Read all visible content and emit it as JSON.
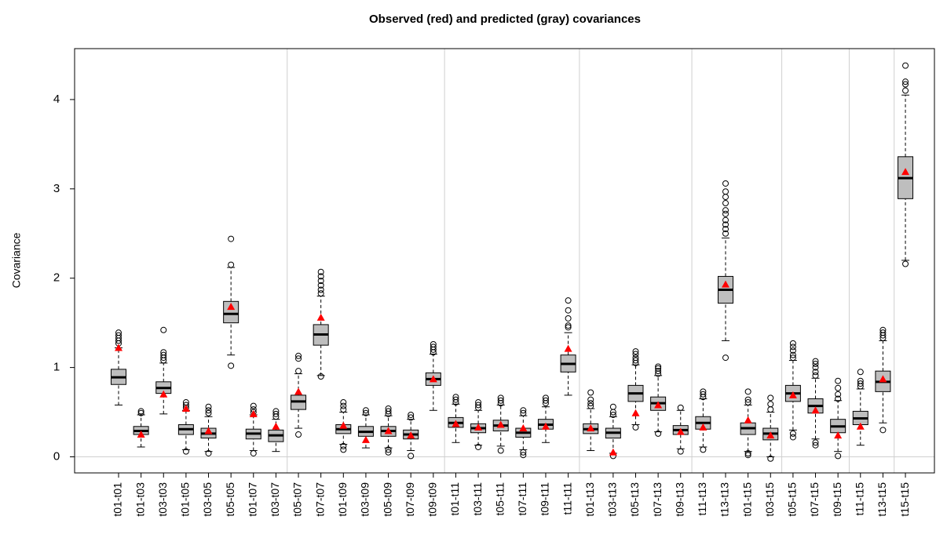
{
  "chart_data": {
    "type": "boxplot",
    "title": "Observed (red) and predicted (gray) covariances",
    "y_label": "Covariance",
    "ylim": [
      -0.18,
      4.57
    ],
    "yticks": [
      0,
      1,
      2,
      3,
      4
    ],
    "box_color": "#bebebe",
    "observed_color": "#ff0000",
    "categories": [
      "t01-t01",
      "t01-t03",
      "t03-t03",
      "t01-t05",
      "t03-t05",
      "t05-t05",
      "t01-t07",
      "t03-t07",
      "t05-t07",
      "t07-t07",
      "t01-t09",
      "t03-t09",
      "t05-t09",
      "t07-t09",
      "t09-t09",
      "t01-t11",
      "t03-t11",
      "t05-t11",
      "t07-t11",
      "t09-t11",
      "t11-t11",
      "t01-t13",
      "t03-t13",
      "t05-t13",
      "t07-t13",
      "t09-t13",
      "t11-t13",
      "t13-t13",
      "t01-t15",
      "t03-t15",
      "t05-t15",
      "t07-t15",
      "t09-t15",
      "t11-t15",
      "t13-t15",
      "t15-t15"
    ],
    "boxes": [
      {
        "whisker_low": 0.58,
        "q1": 0.81,
        "median": 0.89,
        "q3": 0.98,
        "whisker_high": 1.22,
        "outliers": [
          1.27,
          1.3,
          1.33,
          1.36,
          1.39
        ]
      },
      {
        "whisker_low": 0.11,
        "q1": 0.25,
        "median": 0.29,
        "q3": 0.34,
        "whisker_high": 0.47,
        "outliers": [
          0.49,
          0.51
        ]
      },
      {
        "whisker_low": 0.48,
        "q1": 0.71,
        "median": 0.77,
        "q3": 0.84,
        "whisker_high": 1.05,
        "outliers": [
          1.08,
          1.11,
          1.14,
          1.17,
          1.42
        ]
      },
      {
        "whisker_low": 0.08,
        "q1": 0.25,
        "median": 0.31,
        "q3": 0.36,
        "whisker_high": 0.52,
        "outliers": [
          0.06,
          0.55,
          0.58,
          0.61
        ]
      },
      {
        "whisker_low": 0.06,
        "q1": 0.21,
        "median": 0.26,
        "q3": 0.32,
        "whisker_high": 0.45,
        "outliers": [
          0.04,
          0.49,
          0.52,
          0.56
        ]
      },
      {
        "whisker_low": 1.14,
        "q1": 1.5,
        "median": 1.6,
        "q3": 1.74,
        "whisker_high": 2.12,
        "outliers": [
          1.02,
          2.15,
          2.44
        ]
      },
      {
        "whisker_low": 0.07,
        "q1": 0.2,
        "median": 0.26,
        "q3": 0.31,
        "whisker_high": 0.47,
        "outliers": [
          0.04,
          0.5,
          0.53,
          0.57
        ]
      },
      {
        "whisker_low": 0.06,
        "q1": 0.17,
        "median": 0.24,
        "q3": 0.3,
        "whisker_high": 0.42,
        "outliers": [
          0.45,
          0.48,
          0.51
        ]
      },
      {
        "whisker_low": 0.32,
        "q1": 0.53,
        "median": 0.62,
        "q3": 0.69,
        "whisker_high": 0.93,
        "outliers": [
          0.25,
          0.96,
          1.1,
          1.13
        ]
      },
      {
        "whisker_low": 0.91,
        "q1": 1.25,
        "median": 1.37,
        "q3": 1.48,
        "whisker_high": 1.8,
        "outliers": [
          0.9,
          1.83,
          1.87,
          1.92,
          1.97,
          2.02,
          2.07
        ]
      },
      {
        "whisker_low": 0.14,
        "q1": 0.26,
        "median": 0.31,
        "q3": 0.36,
        "whisker_high": 0.5,
        "outliers": [
          0.08,
          0.12,
          0.53,
          0.57,
          0.61
        ]
      },
      {
        "whisker_low": 0.1,
        "q1": 0.23,
        "median": 0.28,
        "q3": 0.34,
        "whisker_high": 0.47,
        "outliers": [
          0.49,
          0.52
        ]
      },
      {
        "whisker_low": 0.1,
        "q1": 0.23,
        "median": 0.29,
        "q3": 0.34,
        "whisker_high": 0.46,
        "outliers": [
          0.05,
          0.08,
          0.48,
          0.51,
          0.54
        ]
      },
      {
        "whisker_low": 0.07,
        "q1": 0.2,
        "median": 0.25,
        "q3": 0.3,
        "whisker_high": 0.42,
        "outliers": [
          0.01,
          0.44,
          0.47
        ]
      },
      {
        "whisker_low": 0.52,
        "q1": 0.8,
        "median": 0.87,
        "q3": 0.94,
        "whisker_high": 1.15,
        "outliers": [
          1.17,
          1.2,
          1.23,
          1.26
        ]
      },
      {
        "whisker_low": 0.16,
        "q1": 0.33,
        "median": 0.38,
        "q3": 0.44,
        "whisker_high": 0.59,
        "outliers": [
          0.61,
          0.64,
          0.67
        ]
      },
      {
        "whisker_low": 0.13,
        "q1": 0.27,
        "median": 0.32,
        "q3": 0.37,
        "whisker_high": 0.52,
        "outliers": [
          0.11,
          0.55,
          0.58,
          0.61
        ]
      },
      {
        "whisker_low": 0.12,
        "q1": 0.29,
        "median": 0.35,
        "q3": 0.41,
        "whisker_high": 0.58,
        "outliers": [
          0.07,
          0.6,
          0.63,
          0.66
        ]
      },
      {
        "whisker_low": 0.08,
        "q1": 0.22,
        "median": 0.27,
        "q3": 0.32,
        "whisker_high": 0.46,
        "outliers": [
          0.02,
          0.05,
          0.49,
          0.52
        ]
      },
      {
        "whisker_low": 0.16,
        "q1": 0.31,
        "median": 0.36,
        "q3": 0.42,
        "whisker_high": 0.56,
        "outliers": [
          0.6,
          0.63,
          0.66
        ]
      },
      {
        "whisker_low": 0.69,
        "q1": 0.95,
        "median": 1.04,
        "q3": 1.14,
        "whisker_high": 1.39,
        "outliers": [
          1.45,
          1.47,
          1.55,
          1.64,
          1.75
        ]
      },
      {
        "whisker_low": 0.07,
        "q1": 0.26,
        "median": 0.31,
        "q3": 0.37,
        "whisker_high": 0.54,
        "outliers": [
          0.57,
          0.6,
          0.64,
          0.72
        ]
      },
      {
        "whisker_low": 0.04,
        "q1": 0.21,
        "median": 0.27,
        "q3": 0.32,
        "whisker_high": 0.45,
        "outliers": [
          0.01,
          0.47,
          0.5,
          0.56
        ]
      },
      {
        "whisker_low": 0.36,
        "q1": 0.62,
        "median": 0.71,
        "q3": 0.8,
        "whisker_high": 1.03,
        "outliers": [
          0.33,
          1.05,
          1.08,
          1.11,
          1.15,
          1.18
        ]
      },
      {
        "whisker_low": 0.28,
        "q1": 0.52,
        "median": 0.6,
        "q3": 0.67,
        "whisker_high": 0.91,
        "outliers": [
          0.26,
          0.93,
          0.96,
          0.99,
          1.01
        ]
      },
      {
        "whisker_low": 0.09,
        "q1": 0.25,
        "median": 0.3,
        "q3": 0.35,
        "whisker_high": 0.52,
        "outliers": [
          0.06,
          0.55
        ]
      },
      {
        "whisker_low": 0.11,
        "q1": 0.31,
        "median": 0.38,
        "q3": 0.45,
        "whisker_high": 0.65,
        "outliers": [
          0.08,
          0.67,
          0.7,
          0.73
        ]
      },
      {
        "whisker_low": 1.3,
        "q1": 1.72,
        "median": 1.87,
        "q3": 2.02,
        "whisker_high": 2.45,
        "outliers": [
          1.11,
          2.5,
          2.55,
          2.6,
          2.65,
          2.72,
          2.76,
          2.84,
          2.91,
          2.97,
          3.06
        ]
      },
      {
        "whisker_low": 0.06,
        "q1": 0.25,
        "median": 0.32,
        "q3": 0.38,
        "whisker_high": 0.58,
        "outliers": [
          0.02,
          0.04,
          0.61,
          0.64,
          0.73
        ]
      },
      {
        "whisker_low": 0.0,
        "q1": 0.19,
        "median": 0.26,
        "q3": 0.32,
        "whisker_high": 0.5,
        "outliers": [
          -0.02,
          0.53,
          0.59,
          0.66
        ]
      },
      {
        "whisker_low": 0.3,
        "q1": 0.62,
        "median": 0.71,
        "q3": 0.8,
        "whisker_high": 1.08,
        "outliers": [
          0.22,
          0.26,
          1.11,
          1.14,
          1.19,
          1.23,
          1.27
        ]
      },
      {
        "whisker_low": 0.2,
        "q1": 0.49,
        "median": 0.57,
        "q3": 0.65,
        "whisker_high": 0.88,
        "outliers": [
          0.13,
          0.16,
          0.91,
          0.95,
          1.0,
          1.04,
          1.07
        ]
      },
      {
        "whisker_low": 0.06,
        "q1": 0.27,
        "median": 0.34,
        "q3": 0.42,
        "whisker_high": 0.63,
        "outliers": [
          0.01,
          0.65,
          0.7,
          0.77,
          0.85
        ]
      },
      {
        "whisker_low": 0.13,
        "q1": 0.36,
        "median": 0.43,
        "q3": 0.51,
        "whisker_high": 0.76,
        "outliers": [
          0.79,
          0.82,
          0.85,
          0.95
        ]
      },
      {
        "whisker_low": 0.38,
        "q1": 0.73,
        "median": 0.84,
        "q3": 0.96,
        "whisker_high": 1.3,
        "outliers": [
          0.3,
          1.33,
          1.36,
          1.39,
          1.42
        ]
      },
      {
        "whisker_low": 2.2,
        "q1": 2.89,
        "median": 3.12,
        "q3": 3.36,
        "whisker_high": 4.05,
        "outliers": [
          2.16,
          4.1,
          4.17,
          4.2,
          4.38
        ]
      }
    ],
    "observed": [
      1.22,
      0.25,
      0.7,
      0.54,
      0.29,
      1.68,
      0.48,
      0.34,
      0.73,
      1.56,
      0.35,
      0.19,
      0.29,
      0.24,
      0.87,
      0.37,
      0.33,
      0.36,
      0.32,
      0.34,
      1.21,
      0.32,
      0.05,
      0.49,
      0.58,
      0.28,
      0.33,
      1.93,
      0.41,
      0.24,
      0.69,
      0.52,
      0.24,
      0.34,
      0.87,
      3.19
    ]
  }
}
